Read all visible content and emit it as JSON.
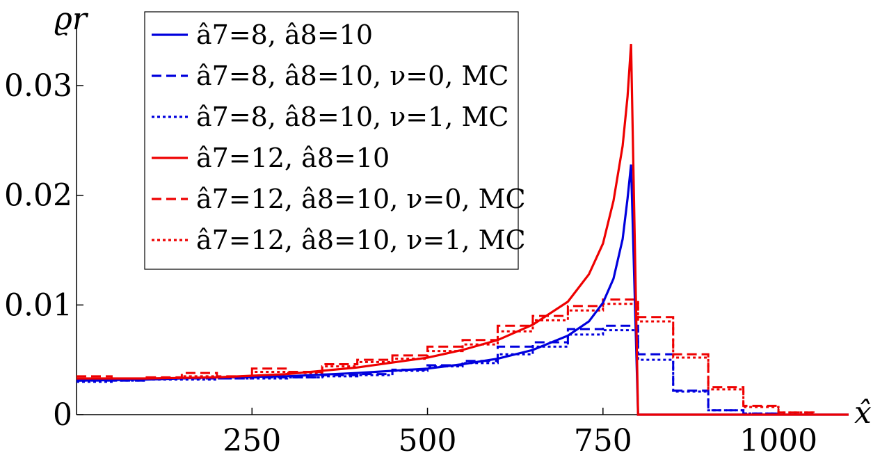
{
  "chart_data": {
    "type": "line",
    "xlabel": "x̂",
    "ylabel": "ϱr",
    "xlim": [
      0,
      1100
    ],
    "ylim": [
      0,
      0.034
    ],
    "x_ticks": [
      "250",
      "500",
      "750",
      "1000"
    ],
    "x_tick_values": [
      250,
      500,
      750,
      1000
    ],
    "y_ticks": [
      "0",
      "0.01",
      "0.02",
      "0.03"
    ],
    "y_tick_values": [
      0,
      0.01,
      0.02,
      0.03
    ],
    "grid": false,
    "legend_position": "top-left",
    "series": [
      {
        "name": "â7=8, â8=10",
        "color": "#0000dd",
        "style": "solid",
        "kind": "line",
        "x": [
          0,
          100,
          200,
          300,
          400,
          500,
          550,
          600,
          650,
          700,
          730,
          750,
          765,
          778,
          785,
          790,
          800,
          801,
          1100
        ],
        "y": [
          0.0031,
          0.0032,
          0.0034,
          0.0035,
          0.0038,
          0.0042,
          0.0046,
          0.0051,
          0.0059,
          0.0072,
          0.0085,
          0.0102,
          0.0124,
          0.016,
          0.0197,
          0.0228,
          0.0,
          0.0,
          0.0
        ]
      },
      {
        "name": "â7=8, â8=10, ν=0, MC",
        "color": "#0000dd",
        "style": "dashed",
        "kind": "step",
        "bin_edges": [
          0,
          50,
          100,
          150,
          200,
          250,
          300,
          350,
          400,
          450,
          500,
          550,
          600,
          650,
          700,
          750,
          800,
          850,
          900,
          950,
          1000,
          1050,
          1100
        ],
        "values": [
          0.0031,
          0.0031,
          0.0033,
          0.0033,
          0.0033,
          0.0034,
          0.0034,
          0.0036,
          0.0037,
          0.0041,
          0.0045,
          0.0049,
          0.0062,
          0.0066,
          0.0078,
          0.0081,
          0.0055,
          0.0022,
          0.0004,
          0.0001,
          0.0,
          0.0
        ]
      },
      {
        "name": "â7=8, â8=10, ν=1, MC",
        "color": "#0000dd",
        "style": "dotted",
        "kind": "step",
        "bin_edges": [
          0,
          50,
          100,
          150,
          200,
          250,
          300,
          350,
          400,
          450,
          500,
          550,
          600,
          650,
          700,
          750,
          800,
          850,
          900,
          950,
          1000,
          1050,
          1100
        ],
        "values": [
          0.003,
          0.0031,
          0.0032,
          0.0032,
          0.0033,
          0.0033,
          0.0034,
          0.0035,
          0.0036,
          0.004,
          0.0044,
          0.0047,
          0.0055,
          0.0062,
          0.0073,
          0.0077,
          0.005,
          0.0021,
          0.0004,
          0.0001,
          0.0,
          0.0
        ]
      },
      {
        "name": "â7=12, â8=10",
        "color": "#ee0000",
        "style": "solid",
        "kind": "line",
        "x": [
          0,
          100,
          200,
          300,
          400,
          500,
          550,
          600,
          650,
          700,
          730,
          750,
          765,
          778,
          785,
          790,
          800,
          801,
          1100
        ],
        "y": [
          0.0033,
          0.0033,
          0.0034,
          0.0037,
          0.0043,
          0.0052,
          0.0059,
          0.0068,
          0.0082,
          0.0103,
          0.0128,
          0.0156,
          0.0195,
          0.0245,
          0.029,
          0.0338,
          0.0,
          0.0,
          0.0
        ]
      },
      {
        "name": "â7=12, â8=10, ν=0, MC",
        "color": "#ee0000",
        "style": "dashed",
        "kind": "step",
        "bin_edges": [
          0,
          50,
          100,
          150,
          200,
          250,
          300,
          350,
          400,
          450,
          500,
          550,
          600,
          650,
          700,
          750,
          800,
          850,
          900,
          950,
          1000,
          1050,
          1100
        ],
        "values": [
          0.0035,
          0.0033,
          0.0034,
          0.0038,
          0.0035,
          0.0042,
          0.0039,
          0.0046,
          0.005,
          0.0054,
          0.0062,
          0.0068,
          0.0081,
          0.009,
          0.0099,
          0.0105,
          0.0089,
          0.0055,
          0.0025,
          0.0008,
          0.0002,
          0.0
        ]
      },
      {
        "name": "â7=12, â8=10, ν=1, MC",
        "color": "#ee0000",
        "style": "dotted",
        "kind": "step",
        "bin_edges": [
          0,
          50,
          100,
          150,
          200,
          250,
          300,
          350,
          400,
          450,
          500,
          550,
          600,
          650,
          700,
          750,
          800,
          850,
          900,
          950,
          1000,
          1050,
          1100
        ],
        "values": [
          0.0033,
          0.0032,
          0.0033,
          0.0035,
          0.0034,
          0.0039,
          0.0038,
          0.0044,
          0.0048,
          0.0051,
          0.0058,
          0.0064,
          0.0076,
          0.0086,
          0.0095,
          0.0101,
          0.0085,
          0.0052,
          0.0023,
          0.0007,
          0.0002,
          0.0
        ]
      }
    ]
  }
}
